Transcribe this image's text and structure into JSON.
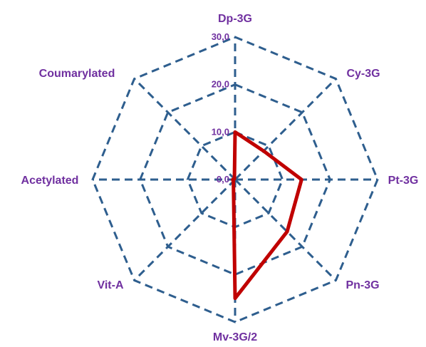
{
  "chart_data": {
    "type": "radar",
    "title": "",
    "axes": [
      "Dp-3G",
      "Cy-3G",
      "Pt-3G",
      "Pn-3G",
      "Mv-3G/2",
      "Vit-A",
      "Acetylated",
      "Coumarylated"
    ],
    "rlim": [
      0,
      30
    ],
    "ticks": [
      "0,0",
      "10,0",
      "20,0",
      "30,0"
    ],
    "tick_values": [
      0,
      10,
      20,
      30
    ],
    "grid": true,
    "legend": "none",
    "series": [
      {
        "values": [
          10,
          8.5,
          14,
          15.5,
          25,
          0.5,
          0.5,
          0.2
        ],
        "color": "#C00000"
      }
    ],
    "colors": {
      "grid": "#2E5E8E",
      "labels": "#7030A0",
      "series": "#C00000"
    }
  }
}
